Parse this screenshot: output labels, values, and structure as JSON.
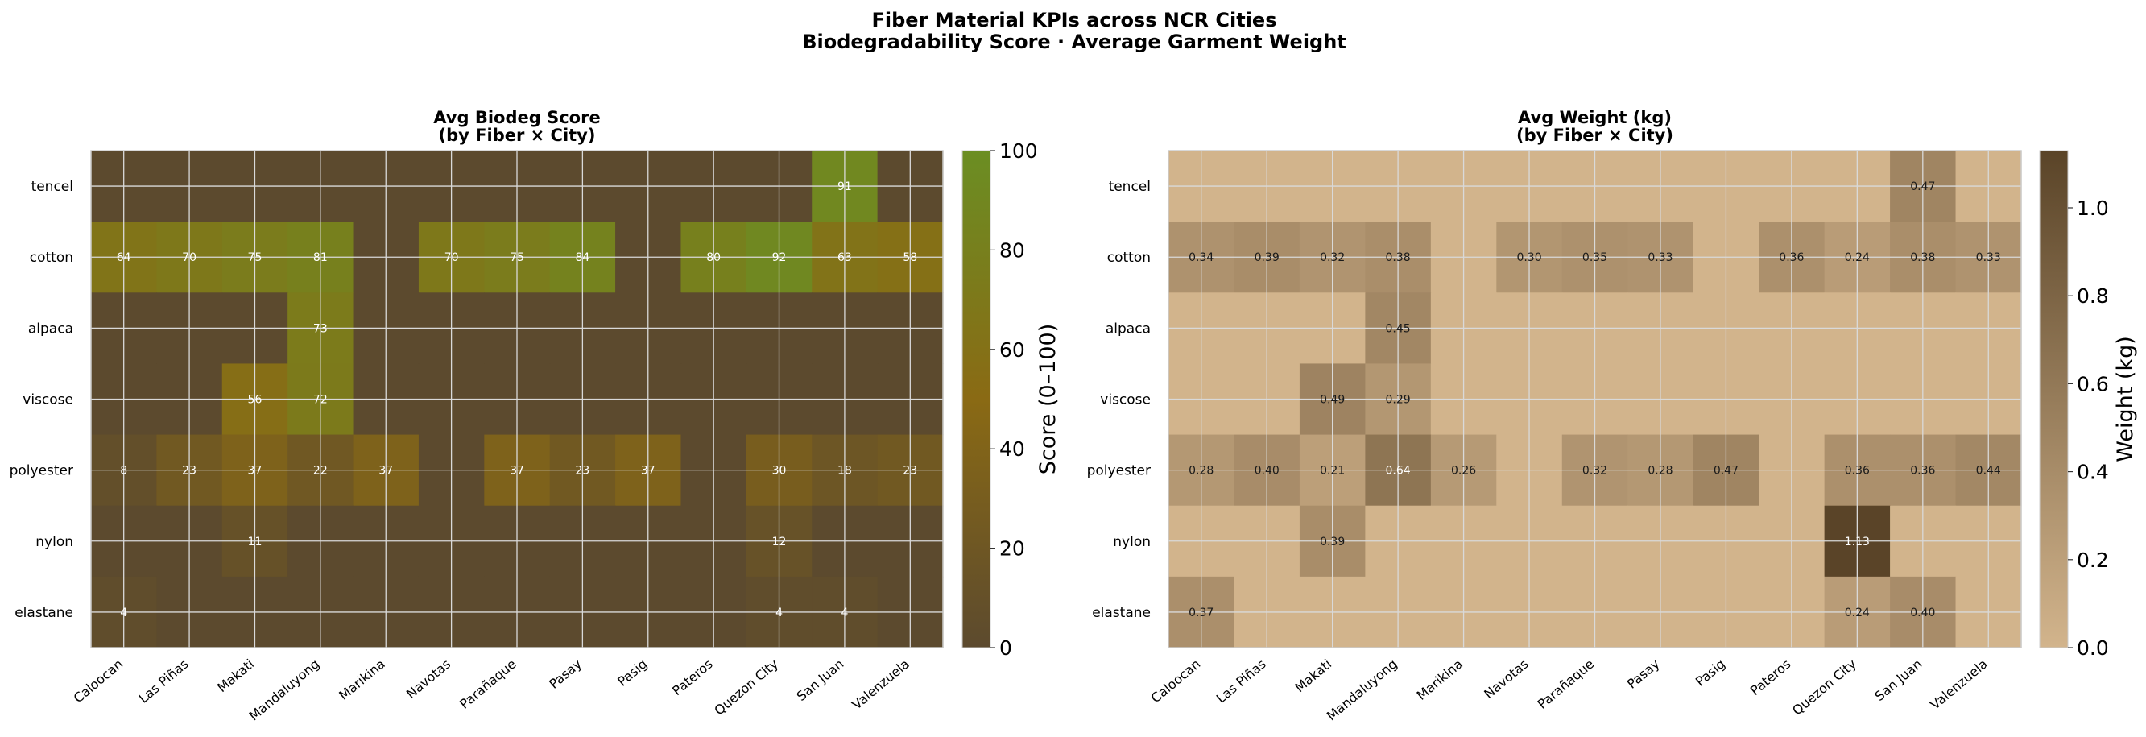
{
  "chart_data": {
    "type": "heatmap",
    "suptitle": [
      "Fiber Material KPIs across NCR Cities",
      "Biodegradability Score  ·  Average Garment Weight"
    ],
    "rows": [
      "tencel",
      "cotton",
      "alpaca",
      "viscose",
      "polyester",
      "nylon",
      "elastane"
    ],
    "cols": [
      "Caloocan",
      "Las Piñas",
      "Makati",
      "Mandaluyong",
      "Marikina",
      "Navotas",
      "Parañaque",
      "Pasay",
      "Pasig",
      "Pateros",
      "Quezon City",
      "San Juan",
      "Valenzuela"
    ],
    "panels": [
      {
        "title": [
          "Avg Biodeg Score",
          "(by Fiber × City)"
        ],
        "colorbar_label": "Score (0–100)",
        "vmin": 0,
        "vmax": 100,
        "ticks": [
          0,
          20,
          40,
          60,
          80,
          100
        ],
        "decimals": 0,
        "colors": [
          "#5c4a2e",
          "#8a6a14",
          "#6b8e23"
        ],
        "values": [
          [
            null,
            null,
            null,
            null,
            null,
            null,
            null,
            null,
            null,
            null,
            null,
            91,
            null
          ],
          [
            64,
            70,
            75,
            81,
            null,
            70,
            75,
            84,
            null,
            80,
            92,
            63,
            58
          ],
          [
            null,
            null,
            null,
            73,
            null,
            null,
            null,
            null,
            null,
            null,
            null,
            null,
            null
          ],
          [
            null,
            null,
            56,
            72,
            null,
            null,
            null,
            null,
            null,
            null,
            null,
            null,
            null
          ],
          [
            8,
            23,
            37,
            22,
            37,
            null,
            37,
            23,
            37,
            null,
            30,
            18,
            23
          ],
          [
            null,
            null,
            11,
            null,
            null,
            null,
            null,
            null,
            null,
            null,
            12,
            null,
            null
          ],
          [
            4,
            null,
            null,
            null,
            null,
            null,
            null,
            null,
            null,
            null,
            4,
            4,
            null
          ]
        ]
      },
      {
        "title": [
          "Avg Weight (kg)",
          "(by Fiber × City)"
        ],
        "colorbar_label": "Weight (kg)",
        "vmin": 0,
        "vmax": 1.13,
        "ticks": [
          0.0,
          0.2,
          0.4,
          0.6,
          0.8,
          1.0
        ],
        "decimals": 2,
        "colors": [
          "#d2b48c",
          "#5a4428"
        ],
        "values": [
          [
            null,
            null,
            null,
            null,
            null,
            null,
            null,
            null,
            null,
            null,
            null,
            0.47,
            null
          ],
          [
            0.34,
            0.39,
            0.32,
            0.38,
            null,
            0.3,
            0.35,
            0.33,
            null,
            0.36,
            0.24,
            0.38,
            0.33
          ],
          [
            null,
            null,
            null,
            0.45,
            null,
            null,
            null,
            null,
            null,
            null,
            null,
            null,
            null
          ],
          [
            null,
            null,
            0.49,
            0.29,
            null,
            null,
            null,
            null,
            null,
            null,
            null,
            null,
            null
          ],
          [
            0.28,
            0.4,
            0.21,
            0.64,
            0.26,
            null,
            0.32,
            0.28,
            0.47,
            null,
            0.36,
            0.36,
            0.44
          ],
          [
            null,
            null,
            0.39,
            null,
            null,
            null,
            null,
            null,
            null,
            null,
            1.13,
            null,
            null
          ],
          [
            0.37,
            null,
            null,
            null,
            null,
            null,
            null,
            null,
            null,
            null,
            0.24,
            0.4,
            null
          ]
        ]
      }
    ]
  }
}
